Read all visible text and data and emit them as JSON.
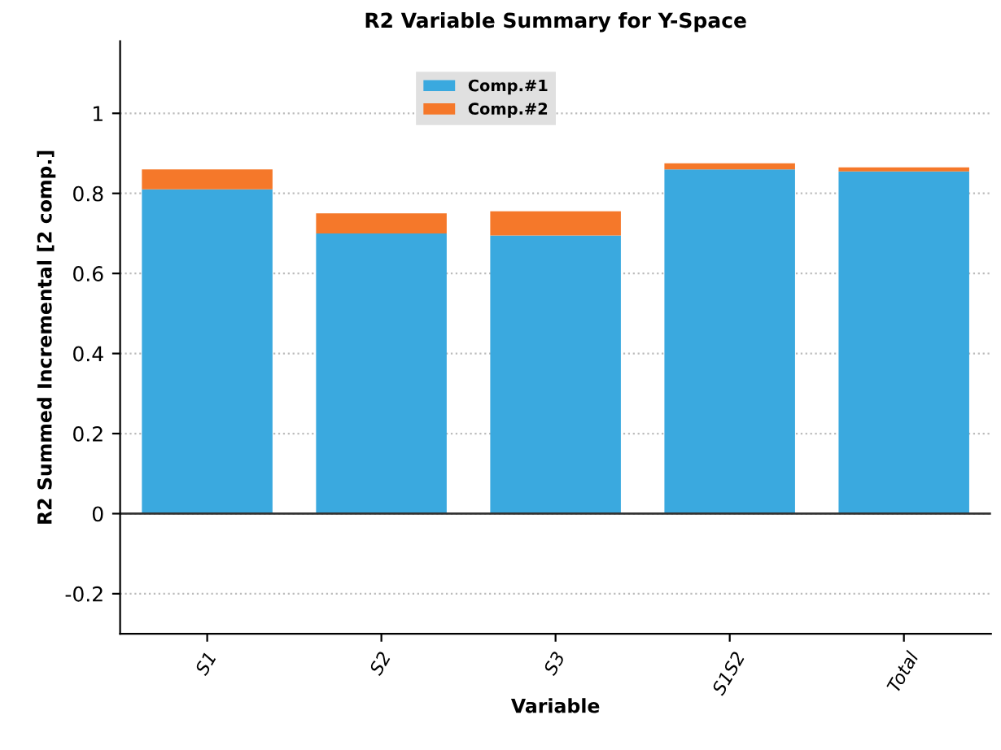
{
  "chart_data": {
    "type": "bar",
    "title": "R2 Variable Summary for Y-Space",
    "xlabel": "Variable",
    "ylabel": "R2 Summed Incremental [2 comp.]",
    "categories": [
      "S1",
      "S2",
      "S3",
      "S1S2",
      "Total"
    ],
    "series": [
      {
        "name": "Comp.#1",
        "color": "#3aa9df",
        "values": [
          0.81,
          0.7,
          0.695,
          0.86,
          0.855
        ]
      },
      {
        "name": "Comp.#2",
        "color": "#f5782a",
        "values": [
          0.05,
          0.05,
          0.06,
          0.015,
          0.01
        ]
      }
    ],
    "stacked": true,
    "ylim": [
      -0.3,
      1.18
    ],
    "yticks": [
      -0.2,
      0,
      0.2,
      0.4,
      0.6,
      0.8,
      1
    ],
    "grid": "y",
    "legend": "top"
  }
}
